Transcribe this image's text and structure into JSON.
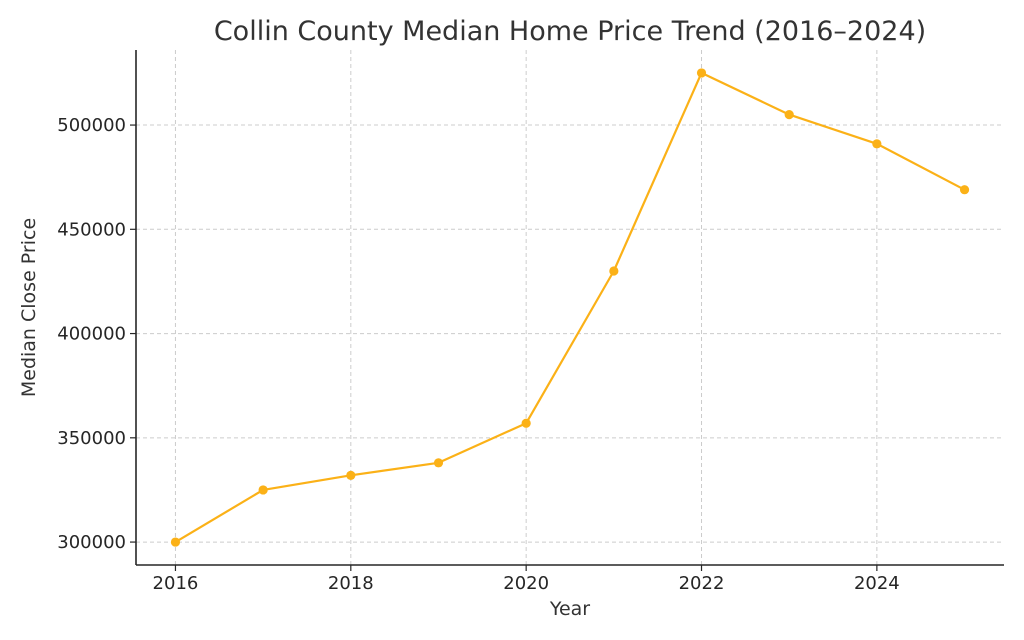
{
  "chart_data": {
    "type": "line",
    "title": "Collin County Median Home Price Trend (2016–2024)",
    "xlabel": "Year",
    "ylabel": "Median Close Price",
    "x": [
      2016,
      2017,
      2018,
      2019,
      2020,
      2021,
      2022,
      2023,
      2024,
      2025
    ],
    "series": [
      {
        "values": [
          300000,
          325000,
          332000,
          338000,
          357000,
          430000,
          525000,
          505000,
          491000,
          469000
        ],
        "color": "#FBB117"
      }
    ],
    "x_ticks": [
      "2016",
      "2018",
      "2020",
      "2022",
      "2024"
    ],
    "y_ticks": [
      "300000",
      "350000",
      "400000",
      "450000",
      "500000"
    ],
    "xlim": [
      2015.55,
      2025.45
    ],
    "ylim": [
      289000,
      536000
    ],
    "grid": true,
    "marker": "circle"
  }
}
